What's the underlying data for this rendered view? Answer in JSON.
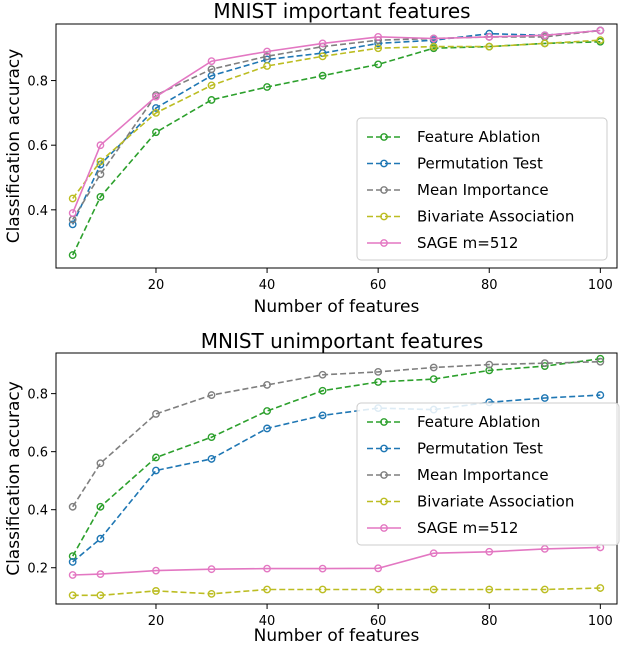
{
  "chart_data": [
    {
      "type": "line",
      "title": "MNIST important features",
      "xlabel": "Number of features",
      "ylabel": "Classification accuracy",
      "xlim": [
        2,
        103
      ],
      "ylim": [
        0.22,
        0.975
      ],
      "xticks": [
        20,
        40,
        60,
        80,
        100
      ],
      "yticks": [
        0.4,
        0.6,
        0.8
      ],
      "grid": false,
      "legend": "lower-right",
      "x": [
        5,
        10,
        20,
        30,
        40,
        50,
        60,
        70,
        80,
        90,
        100
      ],
      "series": [
        {
          "name": "Feature Ablation",
          "color": "#2ca02c",
          "style": "dashed",
          "values": [
            0.26,
            0.44,
            0.64,
            0.74,
            0.78,
            0.815,
            0.85,
            0.9,
            0.905,
            0.915,
            0.92
          ]
        },
        {
          "name": "Permutation Test",
          "color": "#1f77b4",
          "style": "dashed",
          "values": [
            0.355,
            0.54,
            0.715,
            0.815,
            0.865,
            0.885,
            0.915,
            0.925,
            0.945,
            0.94,
            0.955
          ]
        },
        {
          "name": "Mean Importance",
          "color": "#7f7f7f",
          "style": "dashed",
          "values": [
            0.37,
            0.51,
            0.755,
            0.835,
            0.875,
            0.905,
            0.925,
            0.93,
            0.935,
            0.935,
            0.955
          ]
        },
        {
          "name": "Bivariate Association",
          "color": "#bcbd22",
          "style": "dashed",
          "values": [
            0.435,
            0.55,
            0.7,
            0.785,
            0.845,
            0.875,
            0.9,
            0.905,
            0.905,
            0.915,
            0.925
          ]
        },
        {
          "name": "SAGE m=512",
          "color": "#e377c2",
          "style": "solid",
          "values": [
            0.39,
            0.6,
            0.75,
            0.86,
            0.89,
            0.915,
            0.935,
            0.93,
            0.935,
            0.94,
            0.955
          ]
        }
      ]
    },
    {
      "type": "line",
      "title": "MNIST unimportant features",
      "xlabel": "Number of features",
      "ylabel": "Classification accuracy",
      "xlim": [
        2,
        103
      ],
      "ylim": [
        0.075,
        0.94
      ],
      "xticks": [
        20,
        40,
        60,
        80,
        100
      ],
      "yticks": [
        0.2,
        0.4,
        0.6,
        0.8
      ],
      "grid": false,
      "legend": "center-right",
      "x": [
        5,
        10,
        20,
        30,
        40,
        50,
        60,
        70,
        80,
        90,
        100
      ],
      "series": [
        {
          "name": "Feature Ablation",
          "color": "#2ca02c",
          "style": "dashed",
          "values": [
            0.24,
            0.41,
            0.58,
            0.65,
            0.74,
            0.81,
            0.84,
            0.85,
            0.88,
            0.895,
            0.92
          ]
        },
        {
          "name": "Permutation Test",
          "color": "#1f77b4",
          "style": "dashed",
          "values": [
            0.22,
            0.3,
            0.535,
            0.575,
            0.68,
            0.725,
            0.75,
            0.745,
            0.77,
            0.785,
            0.795
          ]
        },
        {
          "name": "Mean Importance",
          "color": "#7f7f7f",
          "style": "dashed",
          "values": [
            0.41,
            0.56,
            0.73,
            0.795,
            0.83,
            0.865,
            0.875,
            0.89,
            0.9,
            0.905,
            0.91
          ]
        },
        {
          "name": "Bivariate Association",
          "color": "#bcbd22",
          "style": "dashed",
          "values": [
            0.105,
            0.105,
            0.12,
            0.11,
            0.125,
            0.125,
            0.125,
            0.125,
            0.125,
            0.125,
            0.13
          ]
        },
        {
          "name": "SAGE m=512",
          "color": "#e377c2",
          "style": "solid",
          "values": [
            0.175,
            0.178,
            0.19,
            0.195,
            0.197,
            0.197,
            0.198,
            0.25,
            0.255,
            0.265,
            0.27
          ]
        }
      ]
    }
  ]
}
